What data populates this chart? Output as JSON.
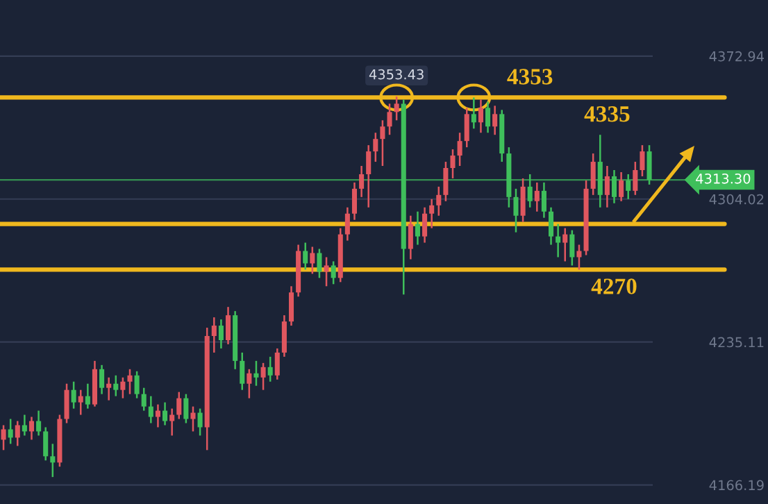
{
  "chart_data": {
    "type": "candlestick",
    "categories": [
      null,
      null,
      null,
      null,
      null,
      null,
      null,
      null,
      null,
      null,
      null,
      null,
      null,
      null,
      null,
      null,
      null,
      null,
      null,
      null,
      null,
      null,
      null,
      null,
      null,
      null,
      null,
      null,
      null,
      null,
      null,
      null,
      null,
      null,
      null,
      null,
      null,
      null,
      null,
      null,
      null,
      null,
      null,
      null,
      null,
      null,
      null,
      null,
      null,
      null,
      null,
      null,
      null,
      null,
      null,
      null,
      null,
      null,
      null,
      null,
      null,
      null,
      null,
      null,
      null,
      null,
      null,
      null,
      null,
      null,
      null,
      null,
      null,
      null,
      null,
      null,
      null,
      null,
      null,
      null,
      null,
      null,
      null,
      null,
      null,
      null,
      null,
      null,
      null,
      null,
      null,
      null,
      null
    ],
    "ohlc": [
      [
        4188,
        4195,
        4183,
        4193
      ],
      [
        4193,
        4198,
        4186,
        4189
      ],
      [
        4189,
        4197,
        4185,
        4195
      ],
      [
        4195,
        4200,
        4190,
        4192
      ],
      [
        4192,
        4199,
        4188,
        4197
      ],
      [
        4197,
        4202,
        4190,
        4192
      ],
      [
        4192,
        4194,
        4178,
        4180
      ],
      [
        4180,
        4186,
        4170,
        4177
      ],
      [
        4177,
        4200,
        4175,
        4198
      ],
      [
        4198,
        4215,
        4196,
        4212
      ],
      [
        4212,
        4216,
        4203,
        4206
      ],
      [
        4206,
        4212,
        4200,
        4209
      ],
      [
        4209,
        4215,
        4203,
        4205
      ],
      [
        4205,
        4226,
        4204,
        4222
      ],
      [
        4222,
        4224,
        4210,
        4213
      ],
      [
        4213,
        4218,
        4207,
        4215
      ],
      [
        4215,
        4219,
        4209,
        4212
      ],
      [
        4212,
        4218,
        4208,
        4216
      ],
      [
        4216,
        4222,
        4210,
        4219
      ],
      [
        4219,
        4221,
        4208,
        4210
      ],
      [
        4210,
        4213,
        4202,
        4204
      ],
      [
        4204,
        4209,
        4196,
        4199
      ],
      [
        4199,
        4205,
        4194,
        4202
      ],
      [
        4202,
        4206,
        4195,
        4197
      ],
      [
        4197,
        4203,
        4190,
        4200
      ],
      [
        4200,
        4211,
        4198,
        4208
      ],
      [
        4208,
        4210,
        4196,
        4198
      ],
      [
        4198,
        4204,
        4192,
        4201
      ],
      [
        4201,
        4203,
        4190,
        4194
      ],
      [
        4194,
        4242,
        4183,
        4238
      ],
      [
        4238,
        4247,
        4230,
        4243
      ],
      [
        4243,
        4246,
        4232,
        4236
      ],
      [
        4236,
        4252,
        4234,
        4248
      ],
      [
        4248,
        4250,
        4222,
        4226
      ],
      [
        4226,
        4230,
        4212,
        4215
      ],
      [
        4215,
        4222,
        4208,
        4220
      ],
      [
        4220,
        4226,
        4214,
        4218
      ],
      [
        4218,
        4225,
        4212,
        4223
      ],
      [
        4223,
        4228,
        4216,
        4219
      ],
      [
        4219,
        4232,
        4217,
        4230
      ],
      [
        4230,
        4248,
        4228,
        4245
      ],
      [
        4245,
        4262,
        4243,
        4259
      ],
      [
        4259,
        4282,
        4257,
        4279
      ],
      [
        4279,
        4283,
        4270,
        4273
      ],
      [
        4273,
        4281,
        4268,
        4278
      ],
      [
        4278,
        4280,
        4266,
        4269
      ],
      [
        4269,
        4276,
        4262,
        4272
      ],
      [
        4272,
        4274,
        4263,
        4266
      ],
      [
        4266,
        4290,
        4264,
        4287
      ],
      [
        4287,
        4300,
        4284,
        4297
      ],
      [
        4297,
        4312,
        4294,
        4309
      ],
      [
        4309,
        4320,
        4305,
        4316
      ],
      [
        4316,
        4330,
        4300,
        4327
      ],
      [
        4327,
        4336,
        4322,
        4333
      ],
      [
        4333,
        4342,
        4320,
        4339
      ],
      [
        4339,
        4350,
        4335,
        4346
      ],
      [
        4346,
        4353.43,
        4342,
        4350
      ],
      [
        4350,
        4352,
        4258,
        4280
      ],
      [
        4280,
        4296,
        4275,
        4292
      ],
      [
        4292,
        4298,
        4282,
        4286
      ],
      [
        4286,
        4300,
        4283,
        4297
      ],
      [
        4297,
        4304,
        4290,
        4301
      ],
      [
        4301,
        4310,
        4296,
        4306
      ],
      [
        4306,
        4322,
        4303,
        4319
      ],
      [
        4319,
        4328,
        4314,
        4325
      ],
      [
        4325,
        4336,
        4320,
        4332
      ],
      [
        4332,
        4348,
        4329,
        4345
      ],
      [
        4345,
        4353,
        4338,
        4341
      ],
      [
        4341,
        4352,
        4336,
        4348
      ],
      [
        4348,
        4351,
        4336,
        4339
      ],
      [
        4339,
        4349,
        4335,
        4345
      ],
      [
        4345,
        4347,
        4322,
        4326
      ],
      [
        4326,
        4329,
        4300,
        4305
      ],
      [
        4305,
        4309,
        4288,
        4296
      ],
      [
        4296,
        4314,
        4293,
        4310
      ],
      [
        4310,
        4316,
        4300,
        4303
      ],
      [
        4303,
        4312,
        4298,
        4308
      ],
      [
        4308,
        4312,
        4295,
        4298
      ],
      [
        4298,
        4300,
        4282,
        4286
      ],
      [
        4286,
        4292,
        4276,
        4283
      ],
      [
        4283,
        4290,
        4274,
        4287
      ],
      [
        4287,
        4289,
        4272,
        4276
      ],
      [
        4276,
        4282,
        4270,
        4279
      ],
      [
        4279,
        4313,
        4277,
        4309
      ],
      [
        4309,
        4326,
        4306,
        4322
      ],
      [
        4322,
        4335,
        4300,
        4306
      ],
      [
        4306,
        4320,
        4300,
        4315
      ],
      [
        4315,
        4318,
        4302,
        4305
      ],
      [
        4305,
        4317,
        4303,
        4313
      ],
      [
        4313,
        4316,
        4304,
        4308
      ],
      [
        4308,
        4322,
        4306,
        4318
      ],
      [
        4318,
        4330,
        4315,
        4327
      ],
      [
        4327,
        4330,
        4311,
        4313.3
      ]
    ],
    "colors": [
      "#e0575f",
      "#3fbf5b",
      "#e0575f",
      "#3fbf5b",
      "#e0575f",
      "#3fbf5b",
      "#3fbf5b",
      "#3fbf5b",
      "#e0575f",
      "#e0575f",
      "#3fbf5b",
      "#e0575f",
      "#3fbf5b",
      "#e0575f",
      "#3fbf5b",
      "#e0575f",
      "#3fbf5b",
      "#e0575f",
      "#e0575f",
      "#3fbf5b",
      "#3fbf5b",
      "#3fbf5b",
      "#e0575f",
      "#3fbf5b",
      "#e0575f",
      "#e0575f",
      "#3fbf5b",
      "#e0575f",
      "#3fbf5b",
      "#e0575f",
      "#e0575f",
      "#3fbf5b",
      "#e0575f",
      "#3fbf5b",
      "#3fbf5b",
      "#e0575f",
      "#3fbf5b",
      "#e0575f",
      "#3fbf5b",
      "#e0575f",
      "#e0575f",
      "#e0575f",
      "#e0575f",
      "#3fbf5b",
      "#e0575f",
      "#3fbf5b",
      "#e0575f",
      "#3fbf5b",
      "#e0575f",
      "#e0575f",
      "#e0575f",
      "#e0575f",
      "#e0575f",
      "#e0575f",
      "#e0575f",
      "#e0575f",
      "#e0575f",
      "#3fbf5b",
      "#e0575f",
      "#3fbf5b",
      "#e0575f",
      "#e0575f",
      "#e0575f",
      "#e0575f",
      "#e0575f",
      "#e0575f",
      "#e0575f",
      "#3fbf5b",
      "#e0575f",
      "#3fbf5b",
      "#e0575f",
      "#3fbf5b",
      "#3fbf5b",
      "#3fbf5b",
      "#e0575f",
      "#3fbf5b",
      "#e0575f",
      "#3fbf5b",
      "#3fbf5b",
      "#3fbf5b",
      "#e0575f",
      "#3fbf5b",
      "#e0575f",
      "#e0575f",
      "#e0575f",
      "#3fbf5b",
      "#e0575f",
      "#3fbf5b",
      "#e0575f",
      "#3fbf5b",
      "#e0575f",
      "#e0575f",
      "#3fbf5b"
    ],
    "ylim": [
      4157,
      4400
    ],
    "yticks": [
      4372.94,
      4304.02,
      4235.11,
      4166.19
    ],
    "tick_labels": "y",
    "grid": "y",
    "ref_lines": [
      {
        "axis": "y",
        "value": 4353,
        "label": "4353",
        "color": "#f0b81e"
      },
      {
        "axis": "y",
        "value": 4292,
        "color": "#f0b81e"
      },
      {
        "axis": "y",
        "value": 4270,
        "label": "4270",
        "color": "#f0b81e"
      },
      {
        "axis": "y",
        "value": 4313.3,
        "label": "4313.30",
        "color": "#3fbf5b"
      }
    ],
    "annotations": [
      {
        "text": "4353.43",
        "y": 4353.43
      },
      {
        "text": "4335",
        "y": 4335
      }
    ]
  }
}
